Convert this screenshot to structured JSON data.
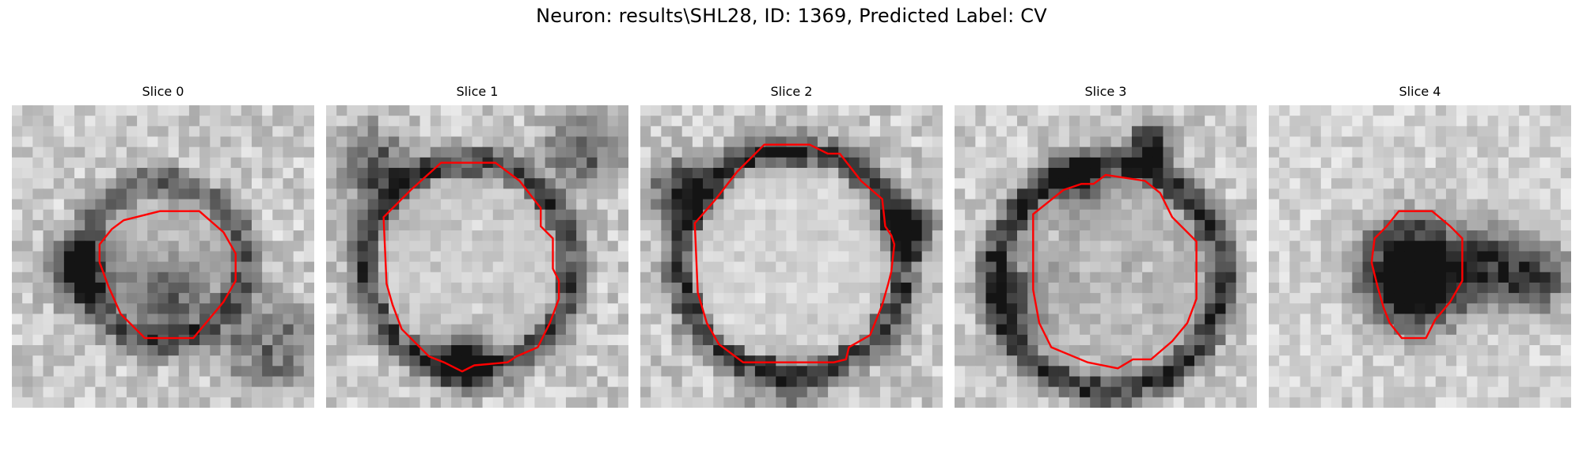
{
  "figure": {
    "title": "Neuron: results\\SHL28, ID: 1369, Predicted Label: CV",
    "contour_color": "#ff0000",
    "colormap": "grayscale"
  },
  "panels": [
    {
      "title": "Slice 0",
      "image": "grayscale-microscopy-slice",
      "outline": "red-roi-contour"
    },
    {
      "title": "Slice 1",
      "image": "grayscale-microscopy-slice",
      "outline": "red-roi-contour"
    },
    {
      "title": "Slice 2",
      "image": "grayscale-microscopy-slice",
      "outline": "red-roi-contour"
    },
    {
      "title": "Slice 3",
      "image": "grayscale-microscopy-slice",
      "outline": "red-roi-contour"
    },
    {
      "title": "Slice 4",
      "image": "grayscale-microscopy-slice",
      "outline": "red-roi-contour"
    }
  ]
}
